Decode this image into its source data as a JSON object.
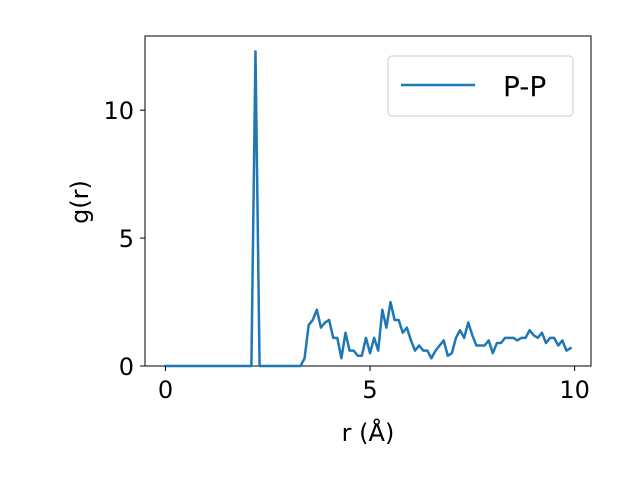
{
  "chart_data": {
    "type": "line",
    "xlabel": "r (Å)",
    "ylabel": "g(r)",
    "xlim": [
      -0.5,
      10.4
    ],
    "ylim": [
      0,
      12.9
    ],
    "xticks": [
      0,
      5,
      10
    ],
    "yticks": [
      0,
      5,
      10
    ],
    "grid": false,
    "legend_position": "top-right",
    "series": [
      {
        "name": "P-P",
        "color": "#1f77b4",
        "x": [
          0.0,
          0.1,
          0.2,
          0.3,
          0.4,
          0.5,
          0.6,
          0.7,
          0.8,
          0.9,
          1.0,
          1.1,
          1.2,
          1.3,
          1.4,
          1.5,
          1.6,
          1.7,
          1.8,
          1.9,
          2.0,
          2.1,
          2.2,
          2.3,
          2.4,
          2.5,
          2.6,
          2.7,
          2.8,
          2.9,
          3.0,
          3.1,
          3.2,
          3.3,
          3.4,
          3.5,
          3.6,
          3.7,
          3.8,
          3.9,
          4.0,
          4.1,
          4.2,
          4.3,
          4.4,
          4.5,
          4.6,
          4.7,
          4.8,
          4.9,
          5.0,
          5.1,
          5.2,
          5.3,
          5.4,
          5.5,
          5.6,
          5.7,
          5.8,
          5.9,
          6.0,
          6.1,
          6.2,
          6.3,
          6.4,
          6.5,
          6.6,
          6.7,
          6.8,
          6.9,
          7.0,
          7.1,
          7.2,
          7.3,
          7.4,
          7.5,
          7.6,
          7.7,
          7.8,
          7.9,
          8.0,
          8.1,
          8.2,
          8.3,
          8.4,
          8.5,
          8.6,
          8.7,
          8.8,
          8.9,
          9.0,
          9.1,
          9.2,
          9.3,
          9.4,
          9.5,
          9.6,
          9.7,
          9.8,
          9.9
        ],
        "y": [
          0,
          0,
          0,
          0,
          0,
          0,
          0,
          0,
          0,
          0,
          0,
          0,
          0,
          0,
          0,
          0,
          0,
          0,
          0,
          0,
          0,
          0,
          12.3,
          0,
          0,
          0,
          0,
          0,
          0,
          0,
          0,
          0,
          0,
          0,
          0.3,
          1.6,
          1.8,
          2.2,
          1.5,
          1.7,
          1.8,
          1.1,
          1.1,
          0.3,
          1.3,
          0.6,
          0.6,
          0.4,
          0.4,
          1.1,
          0.5,
          1.1,
          0.6,
          2.2,
          1.5,
          2.5,
          1.8,
          1.8,
          1.3,
          1.5,
          1.0,
          0.6,
          0.8,
          0.6,
          0.6,
          0.3,
          0.6,
          0.8,
          1.0,
          0.4,
          0.5,
          1.1,
          1.4,
          1.1,
          1.7,
          1.2,
          0.8,
          0.8,
          0.8,
          1.0,
          0.5,
          0.9,
          0.9,
          1.1,
          1.1,
          1.1,
          1.0,
          1.1,
          1.1,
          1.4,
          1.2,
          1.1,
          1.3,
          0.9,
          1.1,
          1.1,
          0.8,
          1.0,
          0.6,
          0.7
        ]
      }
    ]
  }
}
